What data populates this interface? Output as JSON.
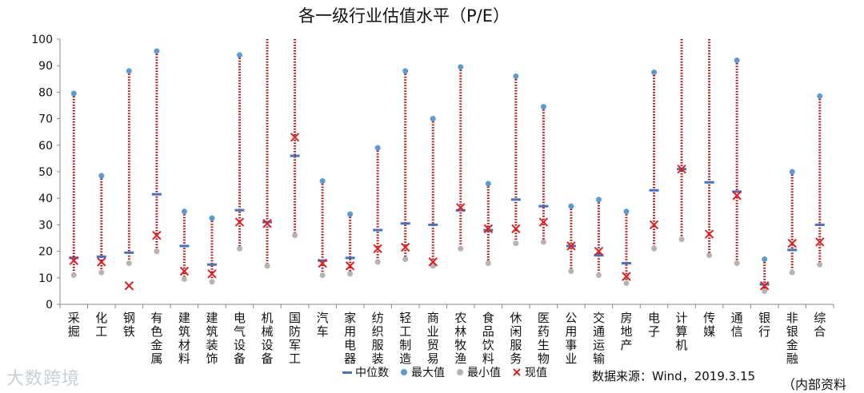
{
  "chart_data": {
    "type": "scatter",
    "title": "各一级行业估值水平（P/E）",
    "ylim": [
      0,
      100
    ],
    "yticks": [
      0,
      10,
      20,
      30,
      40,
      50,
      60,
      70,
      80,
      90,
      100
    ],
    "categories": [
      "采掘",
      "化工",
      "钢铁",
      "有色金属",
      "建筑材料",
      "建筑装饰",
      "电气设备",
      "机械设备",
      "国防军工",
      "汽车",
      "家用电器",
      "纺织服装",
      "轻工制造",
      "商业贸易",
      "农林牧渔",
      "食品饮料",
      "休闲服务",
      "医药生物",
      "公用事业",
      "交通运输",
      "房地产",
      "电子",
      "计算机",
      "传媒",
      "通信",
      "银行",
      "非银金融",
      "综合"
    ],
    "series": [
      {
        "name": "中位数",
        "values": [
          17.5,
          18,
          19.5,
          41.5,
          22,
          15,
          35.5,
          31,
          56,
          16.5,
          17.5,
          28,
          30.5,
          30,
          35.5,
          28,
          39.5,
          37,
          22,
          18.5,
          15.5,
          43,
          51,
          46,
          42.5,
          7.5,
          20.5,
          30
        ]
      },
      {
        "name": "最大值",
        "values": [
          79.5,
          48.5,
          88,
          95.5,
          35,
          32.5,
          94,
          100,
          100,
          46.5,
          34,
          59,
          88,
          70,
          89.5,
          45.5,
          86,
          74.5,
          37,
          39.5,
          35,
          87.5,
          100,
          100,
          92,
          17,
          50,
          78.5
        ]
      },
      {
        "name": "最小值",
        "values": [
          11,
          12,
          15.5,
          20,
          9.5,
          8.5,
          21,
          14.5,
          26,
          11,
          11.5,
          16,
          17,
          14.5,
          21,
          15.5,
          23,
          23.5,
          12.5,
          11,
          8,
          21,
          24.5,
          18.5,
          15.5,
          5,
          12,
          15
        ]
      },
      {
        "name": "现值",
        "values": [
          16.5,
          16,
          7,
          26,
          12.5,
          11.5,
          31,
          30.5,
          63,
          15.5,
          14.5,
          21,
          21.5,
          16,
          36.5,
          28.5,
          28.5,
          31,
          22,
          20,
          10.5,
          30,
          51,
          26.5,
          41,
          7,
          23,
          23.5
        ]
      }
    ],
    "colors": {
      "median": "#4472c4",
      "max": "#5b9bd5",
      "min": "#b4b4b4",
      "current": "#e02020",
      "range_line": "#c00000"
    },
    "grid": false
  },
  "footer": {
    "source": "数据来源：Wind，2019.3.15",
    "note": "（内部资料"
  },
  "watermark": "大数跨境"
}
